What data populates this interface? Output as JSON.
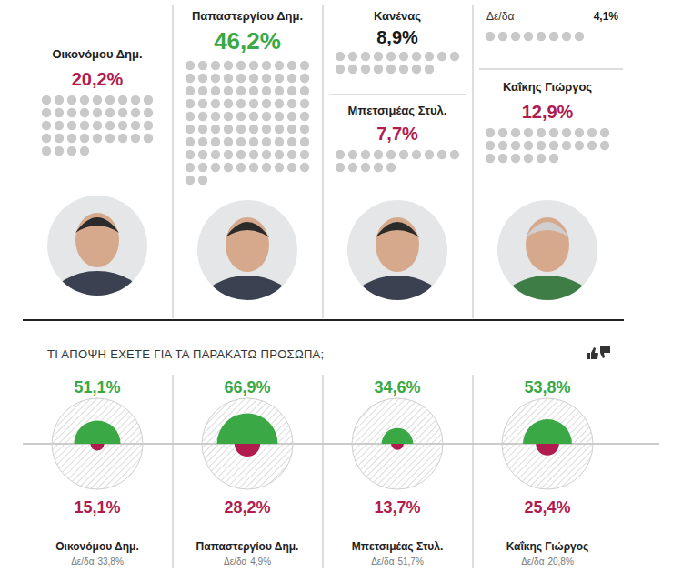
{
  "chart_data": [
    {
      "type": "waffle",
      "categories": [
        "Οικονόμου Δημ.",
        "Παπαστεργίου Δημ.",
        "Κανένας",
        "Μπετσιμέας Στυλ.",
        "Δε/δα",
        "Καΐκης Γιώργος"
      ],
      "values": [
        20.2,
        46.2,
        8.9,
        7.7,
        4.1,
        12.9
      ],
      "value_labels": [
        "20,2%",
        "46,2%",
        "8,9%",
        "7,7%",
        "4,1%",
        "12,9%"
      ],
      "colors": [
        "#b01c4e",
        "#3aa845",
        "#1a1a1a",
        "#b01c4e",
        "#1a1a1a",
        "#b01c4e"
      ],
      "data_labels": true
    },
    {
      "type": "semicircle",
      "title": "ΤΙ ΑΠΟΨΗ ΕΧΕΤΕ ΓΙΑ ΤΑ ΠΑΡΑΚΑΤΩ ΠΡΟΣΩΠΑ;",
      "categories": [
        "Οικονόμου Δημ.",
        "Παπαστεργίου Δημ.",
        "Μπετσιμέας Στυλ.",
        "Καΐκης Γιώργος"
      ],
      "series": [
        {
          "color": "#3aa845",
          "values": [
            51.1,
            66.9,
            34.6,
            53.8
          ],
          "value_labels": [
            "51,1%",
            "66,9%",
            "34,6%",
            "53,8%"
          ]
        },
        {
          "color": "#b01c4e",
          "values": [
            15.1,
            28.2,
            13.7,
            25.4
          ],
          "value_labels": [
            "15,1%",
            "28,2%",
            "13,7%",
            "25,4%"
          ]
        },
        {
          "name": "Δε/δα",
          "color": "#777777",
          "values": [
            33.8,
            4.9,
            51.7,
            20.8
          ],
          "value_labels": [
            "33,8%",
            "4,9%",
            "51,7%",
            "20,8%"
          ]
        }
      ],
      "ylim": [
        0,
        100
      ],
      "data_labels": true
    }
  ]
}
